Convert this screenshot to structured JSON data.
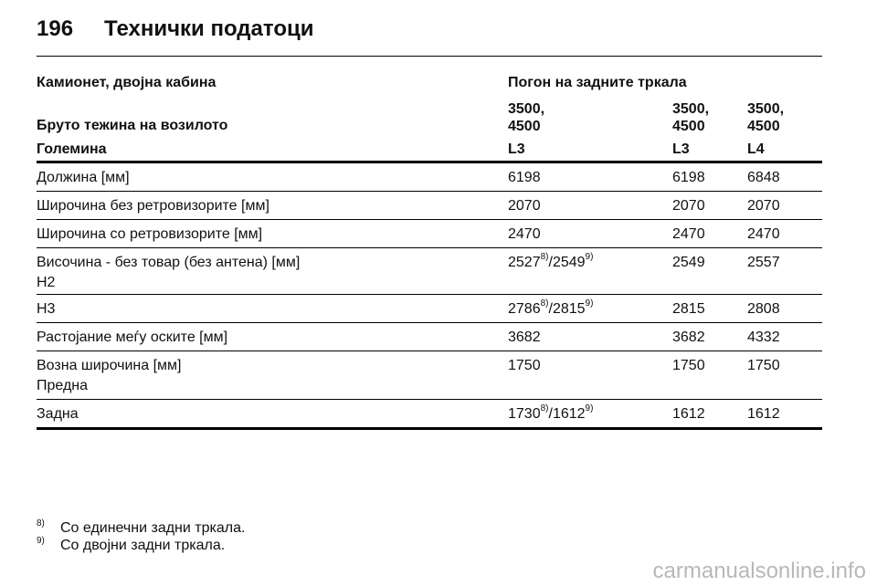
{
  "header": {
    "page_number": "196",
    "title": "Технички податоци"
  },
  "table": {
    "vehicle_label": "Камионет, двојна кабина",
    "drive_label": "Погон на задните тркала",
    "gross_weight_label": "Бруто тежина на возилото",
    "gross_weights": [
      [
        "3500,",
        "4500"
      ],
      [
        "3500,",
        "4500"
      ],
      [
        "3500,",
        "4500"
      ]
    ],
    "size_label": "Големина",
    "sizes": [
      "L3",
      "L3",
      "L4"
    ],
    "rows": [
      {
        "label": "Должина [мм]",
        "values": [
          "6198",
          "6198",
          "6848"
        ]
      },
      {
        "label": "Широчина без ретровизорите [мм]",
        "values": [
          "2070",
          "2070",
          "2070"
        ]
      },
      {
        "label": "Широчина со ретровизорите [мм]",
        "values": [
          "2470",
          "2470",
          "2470"
        ]
      },
      {
        "label": "Височина - без товар (без антена) [мм]",
        "sublabel": "H2",
        "v1a": "2527",
        "n1a": "8)",
        "v1sep": "/",
        "v1b": "2549",
        "n1b": "9)",
        "values": [
          "2549",
          "2557"
        ]
      },
      {
        "label": "H3",
        "v1a": "2786",
        "n1a": "8)",
        "v1sep": "/",
        "v1b": "2815",
        "n1b": "9)",
        "values": [
          "2815",
          "2808"
        ]
      },
      {
        "label": "Растојание меѓу оските [мм]",
        "values": [
          "3682",
          "3682",
          "4332"
        ]
      },
      {
        "label": "Возна широчина [мм]",
        "sublabel": "Предна",
        "values": [
          "1750",
          "1750",
          "1750"
        ]
      },
      {
        "label": "Задна",
        "v1a": "1730",
        "n1a": "8)",
        "v1sep": "/",
        "v1b": "1612",
        "n1b": "9)",
        "values": [
          "1612",
          "1612"
        ]
      }
    ]
  },
  "footnotes": [
    {
      "mark": "8)",
      "text": "Со единечни задни тркала."
    },
    {
      "mark": "9)",
      "text": "Со двојни задни тркала."
    }
  ],
  "watermark": "carmanualsonline.info"
}
